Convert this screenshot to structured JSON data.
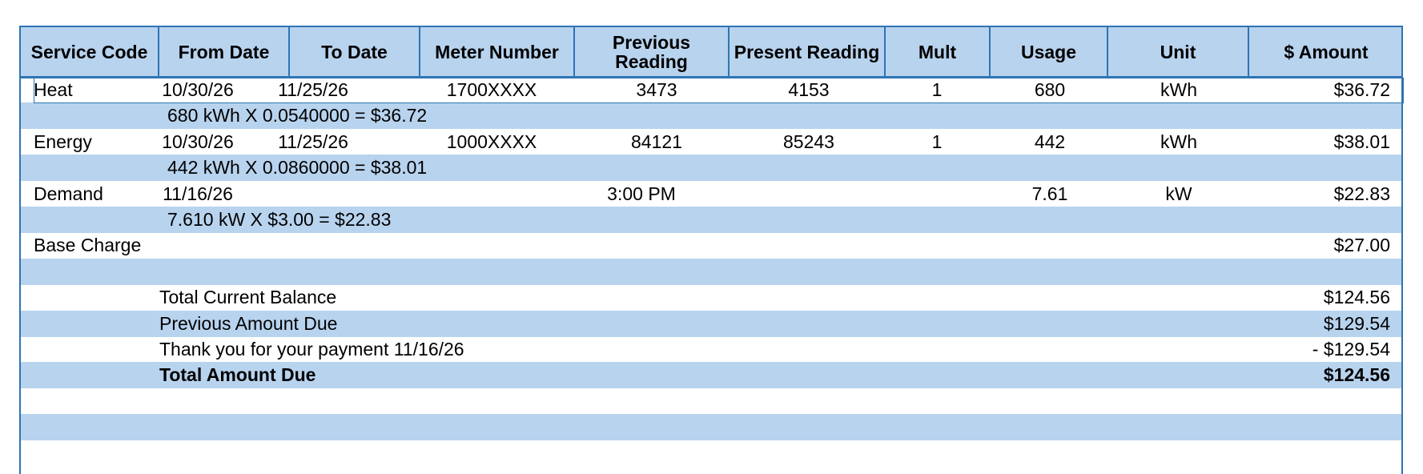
{
  "headers": [
    "Service Code",
    "From Date",
    "To Date",
    "Meter Number",
    "Previous Reading",
    "Present Reading",
    "Mult",
    "Usage",
    "Unit",
    "$ Amount"
  ],
  "services": [
    {
      "code": "Heat",
      "from": "10/30/26",
      "to": "11/25/26",
      "meter": "1700XXXX",
      "previous": "3473",
      "present": "4153",
      "mult": "1",
      "usage": "680",
      "unit": "kWh",
      "amount": "$36.72",
      "detail": "680 kWh X 0.0540000 = $36.72"
    },
    {
      "code": "Energy",
      "from": "10/30/26",
      "to": "11/25/26",
      "meter": "1000XXXX",
      "previous": "84121",
      "present": "85243",
      "mult": "1",
      "usage": "442",
      "unit": "kWh",
      "amount": "$38.01",
      "detail": "442 kWh X 0.0860000 = $38.01"
    },
    {
      "code": "Demand",
      "from": "11/16/26",
      "previous": "3:00 PM",
      "usage": "7.61",
      "unit": "kW",
      "amount": "$22.83",
      "detail": "7.610 kW X $3.00 = $22.83"
    }
  ],
  "base_charge": {
    "label": "Base Charge",
    "amount": "$27.00"
  },
  "totals": [
    {
      "label": "Total Current Balance",
      "amount": "$124.56"
    },
    {
      "label": "Previous Amount Due",
      "amount": "$129.54"
    },
    {
      "label": "Thank you for your payment 11/16/26",
      "amount": "- $129.54"
    },
    {
      "label": "Total Amount Due",
      "amount": "$124.56",
      "bold": true
    }
  ],
  "colors": {
    "row_band": "#b8d3ee",
    "border": "#2e74b5"
  }
}
